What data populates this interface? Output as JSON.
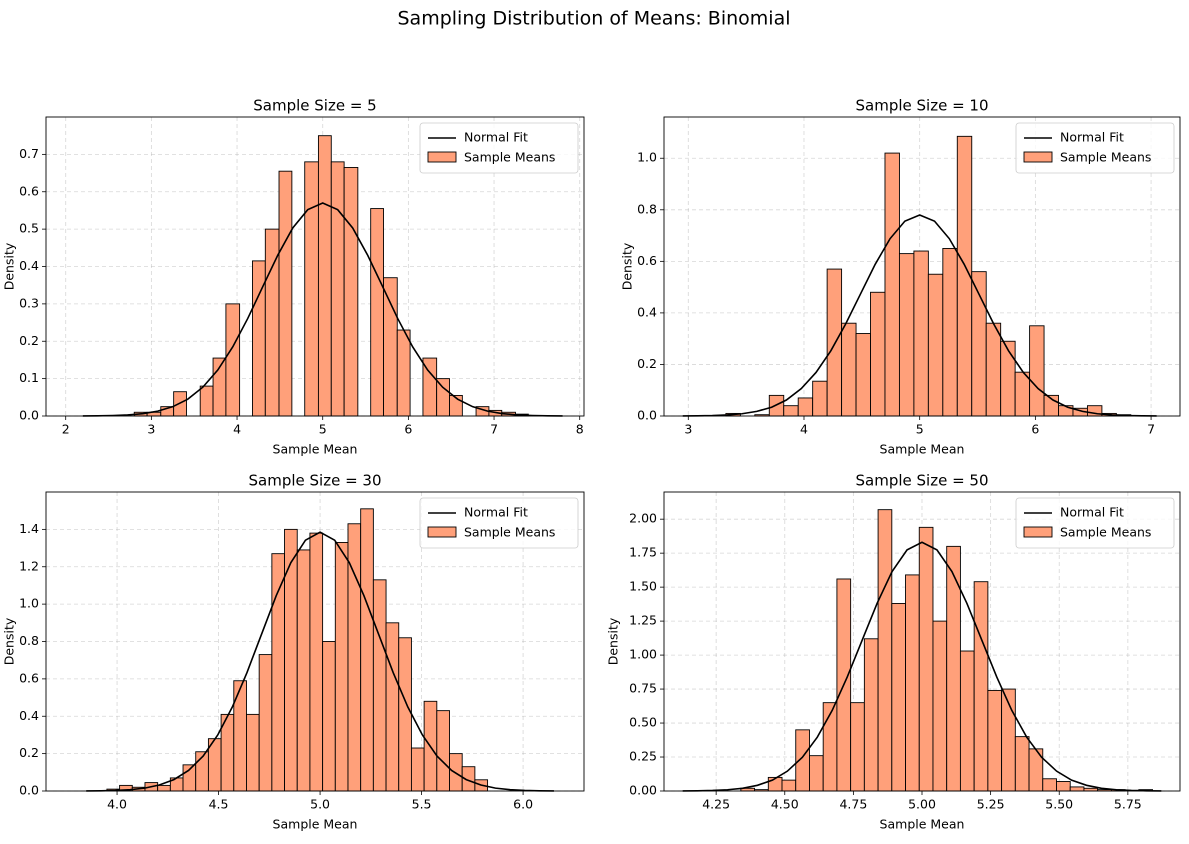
{
  "title": "Sampling Distribution of Means: Binomial",
  "chart_data": [
    {
      "type": "histogram",
      "title": "Sample Size = 5",
      "xlabel": "Sample Mean",
      "ylabel": "Density",
      "name": "Sample Means",
      "color": "#ffa07a",
      "edgecolor": "#000000",
      "bins": [
        2.8,
        2.95,
        3.11,
        3.26,
        3.41,
        3.57,
        3.72,
        3.87,
        4.03,
        4.18,
        4.33,
        4.49,
        4.64,
        4.79,
        4.95,
        5.1,
        5.25,
        5.41,
        5.56,
        5.71,
        5.87,
        6.02,
        6.17,
        6.33,
        6.48,
        6.63,
        6.79,
        6.94,
        7.09,
        7.25,
        7.4
      ],
      "values": [
        0.01,
        0.01,
        0.025,
        0.065,
        0,
        0.08,
        0.155,
        0.3,
        0,
        0.415,
        0.5,
        0.655,
        0,
        0.68,
        0.75,
        0.68,
        0.665,
        0,
        0.555,
        0.37,
        0.23,
        0,
        0.155,
        0.1,
        0.055,
        0,
        0.025,
        0.015,
        0.01,
        0.005
      ],
      "fit": {
        "name": "Normal Fit",
        "color": "#000000",
        "x": [
          2.2,
          2.375,
          2.55,
          2.725,
          2.9,
          3.075,
          3.25,
          3.425,
          3.6,
          3.775,
          3.95,
          4.125,
          4.3,
          4.475,
          4.65,
          4.825,
          5,
          5.175,
          5.35,
          5.525,
          5.7,
          5.875,
          6.05,
          6.225,
          6.4,
          6.575,
          6.75,
          6.925,
          7.1,
          7.275,
          7.45,
          7.625,
          7.8
        ],
        "values": [
          0.0002,
          0.0005,
          0.0013,
          0.0029,
          0.0063,
          0.013,
          0.025,
          0.045,
          0.077,
          0.123,
          0.185,
          0.261,
          0.346,
          0.43,
          0.503,
          0.552,
          0.57,
          0.552,
          0.503,
          0.43,
          0.346,
          0.261,
          0.185,
          0.123,
          0.077,
          0.045,
          0.025,
          0.013,
          0.0063,
          0.0029,
          0.0013,
          0.0005,
          0.0002
        ]
      },
      "xlim": [
        1.77,
        8.05
      ],
      "ylim": [
        0,
        0.8
      ],
      "xticks": [
        2,
        3,
        4,
        5,
        6,
        7,
        8
      ],
      "yticks": [
        {
          "value": 0,
          "label": "0.0"
        },
        0.1,
        0.2,
        0.3,
        0.4,
        0.5,
        0.6,
        0.7
      ],
      "grid": true,
      "legend": "upper right"
    },
    {
      "type": "histogram",
      "title": "Sample Size = 10",
      "xlabel": "Sample Mean",
      "ylabel": "Density",
      "name": "Sample Means",
      "color": "#ffa07a",
      "edgecolor": "#000000",
      "bins": [
        3.2,
        3.325,
        3.45,
        3.575,
        3.7,
        3.825,
        3.95,
        4.075,
        4.2,
        4.325,
        4.45,
        4.575,
        4.7,
        4.825,
        4.95,
        5.075,
        5.2,
        5.325,
        5.45,
        5.575,
        5.7,
        5.825,
        5.95,
        6.075,
        6.2,
        6.325,
        6.45,
        6.575,
        6.7,
        6.825,
        6.95
      ],
      "values": [
        0,
        0.01,
        0,
        0.005,
        0.08,
        0.04,
        0.07,
        0.135,
        0.57,
        0.36,
        0.32,
        0.48,
        1.02,
        0.63,
        0.64,
        0.55,
        0.65,
        1.085,
        0.56,
        0.36,
        0.29,
        0.17,
        0.35,
        0.08,
        0.04,
        0.03,
        0.04,
        0.01,
        0.005,
        0
      ],
      "fit": {
        "name": "Normal Fit",
        "color": "#000000",
        "x": [
          2.952,
          3.08,
          3.208,
          3.336,
          3.464,
          3.592,
          3.72,
          3.848,
          3.976,
          4.104,
          4.232,
          4.36,
          4.488,
          4.616,
          4.744,
          4.872,
          5,
          5.128,
          5.256,
          5.384,
          5.512,
          5.64,
          5.768,
          5.896,
          6.024,
          6.152,
          6.28,
          6.408,
          6.536,
          6.664,
          6.792,
          6.92,
          7.048
        ],
        "values": [
          0.0002,
          0.0007,
          0.0017,
          0.004,
          0.0087,
          0.018,
          0.034,
          0.062,
          0.106,
          0.169,
          0.253,
          0.357,
          0.473,
          0.589,
          0.688,
          0.756,
          0.78,
          0.756,
          0.688,
          0.589,
          0.473,
          0.357,
          0.253,
          0.169,
          0.106,
          0.062,
          0.034,
          0.018,
          0.0087,
          0.004,
          0.0017,
          0.0007,
          0.0002
        ]
      },
      "xlim": [
        2.79,
        7.25
      ],
      "ylim": [
        0,
        1.16
      ],
      "xticks": [
        3,
        4,
        5,
        6,
        7
      ],
      "yticks": [
        {
          "value": 0,
          "label": "0.0"
        },
        0.2,
        0.4,
        0.6,
        0.8,
        {
          "value": 1,
          "label": "1.0"
        }
      ],
      "grid": true,
      "legend": "upper right"
    },
    {
      "type": "histogram",
      "title": "Sample Size = 30",
      "xlabel": "Sample Mean",
      "ylabel": "Density",
      "name": "Sample Means",
      "color": "#ffa07a",
      "edgecolor": "#000000",
      "bins": [
        3.95,
        4.0125,
        4.075,
        4.1375,
        4.2,
        4.2625,
        4.325,
        4.3875,
        4.45,
        4.5125,
        4.575,
        4.6375,
        4.7,
        4.7625,
        4.825,
        4.8875,
        4.95,
        5.0125,
        5.075,
        5.1375,
        5.2,
        5.2625,
        5.325,
        5.3875,
        5.45,
        5.5125,
        5.575,
        5.6375,
        5.7,
        5.7625,
        5.825
      ],
      "values": [
        0.01,
        0.03,
        0.02,
        0.045,
        0.03,
        0.07,
        0.14,
        0.21,
        0.28,
        0.41,
        0.59,
        0.41,
        0.73,
        1.27,
        1.4,
        1.29,
        1.38,
        0.8,
        1.33,
        1.43,
        1.51,
        1.13,
        0.9,
        0.82,
        0.23,
        0.48,
        0.43,
        0.2,
        0.13,
        0.06
      ],
      "fit": {
        "name": "Normal Fit",
        "color": "#000000",
        "x": [
          3.848,
          3.92,
          3.992,
          4.064,
          4.136,
          4.208,
          4.28,
          4.352,
          4.424,
          4.496,
          4.568,
          4.64,
          4.712,
          4.784,
          4.856,
          4.928,
          5,
          5.072,
          5.144,
          5.216,
          5.288,
          5.36,
          5.432,
          5.504,
          5.576,
          5.648,
          5.72,
          5.792,
          5.864,
          5.936,
          6.008,
          6.08,
          6.152
        ],
        "values": [
          0.0004,
          0.0012,
          0.003,
          0.0071,
          0.0154,
          0.032,
          0.061,
          0.11,
          0.187,
          0.3,
          0.45,
          0.634,
          0.84,
          1.045,
          1.222,
          1.342,
          1.385,
          1.342,
          1.222,
          1.045,
          0.84,
          0.634,
          0.45,
          0.3,
          0.187,
          0.11,
          0.061,
          0.032,
          0.0154,
          0.0071,
          0.003,
          0.0012,
          0.0004
        ]
      },
      "xlim": [
        3.65,
        6.3
      ],
      "ylim": [
        0,
        1.6
      ],
      "xticks": [
        {
          "value": 4,
          "label": "4.0"
        },
        4.5,
        {
          "value": 5,
          "label": "5.0"
        },
        5.5,
        {
          "value": 6,
          "label": "6.0"
        }
      ],
      "yticks": [
        {
          "value": 0,
          "label": "0.0"
        },
        0.2,
        0.4,
        0.6,
        0.8,
        {
          "value": 1,
          "label": "1.0"
        },
        1.2,
        1.4
      ],
      "grid": true,
      "legend": "upper right"
    },
    {
      "type": "histogram",
      "title": "Sample Size = 50",
      "xlabel": "Sample Mean",
      "ylabel": "Density",
      "name": "Sample Means",
      "color": "#ffa07a",
      "edgecolor": "#000000",
      "bins": [
        4.34,
        4.39,
        4.44,
        4.49,
        4.54,
        4.59,
        4.64,
        4.69,
        4.74,
        4.79,
        4.84,
        4.89,
        4.94,
        4.99,
        5.04,
        5.09,
        5.14,
        5.19,
        5.24,
        5.29,
        5.34,
        5.39,
        5.44,
        5.49,
        5.54,
        5.59,
        5.64,
        5.69,
        5.74,
        5.79,
        5.84
      ],
      "values": [
        0.02,
        0.01,
        0.1,
        0.08,
        0.45,
        0.26,
        0.65,
        1.56,
        0.65,
        1.12,
        2.07,
        1.38,
        1.59,
        1.94,
        1.25,
        1.8,
        1.03,
        1.54,
        0.74,
        0.75,
        0.4,
        0.31,
        0.09,
        0.07,
        0.03,
        0.02,
        0.01,
        0.01,
        0,
        0.01
      ],
      "fit": {
        "name": "Normal Fit",
        "color": "#000000",
        "x": [
          4.128,
          4.1825,
          4.237,
          4.2915,
          4.346,
          4.4005,
          4.455,
          4.5095,
          4.564,
          4.6185,
          4.673,
          4.7275,
          4.782,
          4.8365,
          4.891,
          4.9455,
          5,
          5.0545,
          5.109,
          5.1635,
          5.218,
          5.2725,
          5.327,
          5.3815,
          5.436,
          5.4905,
          5.545,
          5.5995,
          5.654,
          5.7085,
          5.763,
          5.8175,
          5.872
        ],
        "values": [
          0.0005,
          0.0016,
          0.004,
          0.0093,
          0.02,
          0.042,
          0.08,
          0.146,
          0.248,
          0.396,
          0.594,
          0.838,
          1.11,
          1.381,
          1.615,
          1.774,
          1.83,
          1.774,
          1.615,
          1.381,
          1.11,
          0.838,
          0.594,
          0.396,
          0.248,
          0.146,
          0.08,
          0.042,
          0.02,
          0.0093,
          0.004,
          0.0016,
          0.0005
        ]
      },
      "xlim": [
        4.06,
        5.94
      ],
      "ylim": [
        0,
        2.2
      ],
      "xticks": [
        {
          "value": 4.25,
          "label": "4.25"
        },
        {
          "value": 4.5,
          "label": "4.50"
        },
        {
          "value": 4.75,
          "label": "4.75"
        },
        {
          "value": 5,
          "label": "5.00"
        },
        {
          "value": 5.25,
          "label": "5.25"
        },
        {
          "value": 5.5,
          "label": "5.50"
        },
        {
          "value": 5.75,
          "label": "5.75"
        }
      ],
      "yticks": [
        {
          "value": 0,
          "label": "0.00"
        },
        0.25,
        {
          "value": 0.5,
          "label": "0.50"
        },
        0.75,
        {
          "value": 1,
          "label": "1.00"
        },
        1.25,
        {
          "value": 1.5,
          "label": "1.50"
        },
        1.75,
        {
          "value": 2,
          "label": "2.00"
        }
      ],
      "grid": true,
      "legend": "upper right"
    }
  ]
}
